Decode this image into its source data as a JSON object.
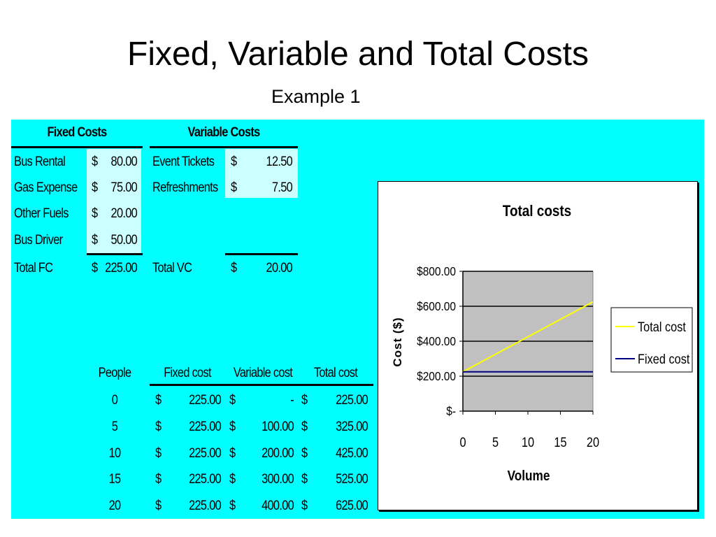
{
  "slide": {
    "title": "Fixed, Variable and Total Costs",
    "subtitle": "Example 1"
  },
  "fixed_costs": {
    "header": "Fixed Costs",
    "items": [
      {
        "label": "Bus Rental",
        "currency": "$",
        "amount": "80.00"
      },
      {
        "label": "Gas Expense",
        "currency": "$",
        "amount": "75.00"
      },
      {
        "label": "Other Fuels",
        "currency": "$",
        "amount": "20.00"
      },
      {
        "label": "Bus Driver",
        "currency": "$",
        "amount": "50.00"
      }
    ],
    "total": {
      "label": "Total FC",
      "currency": "$",
      "amount": "225.00"
    }
  },
  "variable_costs": {
    "header": "Variable Costs",
    "items": [
      {
        "label": "Event Tickets",
        "currency": "$",
        "amount": "12.50"
      },
      {
        "label": "Refreshments",
        "currency": "$",
        "amount": "7.50"
      }
    ],
    "total": {
      "label": "Total VC",
      "currency": "$",
      "amount": "20.00"
    }
  },
  "cost_table": {
    "headers": [
      "People",
      "Fixed cost",
      "Variable cost",
      "Total cost"
    ],
    "rows": [
      {
        "people": "0",
        "fc_cur": "$",
        "fc": "225.00",
        "vc_cur": "$",
        "vc": "-",
        "tc_cur": "$",
        "tc": "225.00"
      },
      {
        "people": "5",
        "fc_cur": "$",
        "fc": "225.00",
        "vc_cur": "$",
        "vc": "100.00",
        "tc_cur": "$",
        "tc": "325.00"
      },
      {
        "people": "10",
        "fc_cur": "$",
        "fc": "225.00",
        "vc_cur": "$",
        "vc": "200.00",
        "tc_cur": "$",
        "tc": "425.00"
      },
      {
        "people": "15",
        "fc_cur": "$",
        "fc": "225.00",
        "vc_cur": "$",
        "vc": "300.00",
        "tc_cur": "$",
        "tc": "525.00"
      },
      {
        "people": "20",
        "fc_cur": "$",
        "fc": "225.00",
        "vc_cur": "$",
        "vc": "400.00",
        "tc_cur": "$",
        "tc": "625.00"
      }
    ]
  },
  "chart_data": {
    "type": "line",
    "title": "Total costs",
    "xlabel": "Volume",
    "ylabel": "Cost ($)",
    "x": [
      0,
      5,
      10,
      15,
      20
    ],
    "x_tick_labels": [
      "0",
      "5",
      "10",
      "15",
      "20"
    ],
    "y_tick_values": [
      0,
      200,
      400,
      600,
      800
    ],
    "y_tick_labels": [
      "$-",
      "$200.00",
      "$400.00",
      "$600.00",
      "$800.00"
    ],
    "ylim": [
      0,
      800
    ],
    "series": [
      {
        "name": "Total cost",
        "color": "#ffff00",
        "values": [
          225,
          325,
          425,
          525,
          625
        ]
      },
      {
        "name": "Fixed cost",
        "color": "#000080",
        "values": [
          225,
          225,
          225,
          225,
          225
        ]
      }
    ],
    "grid": "horizontal",
    "plot_background": "#c0c0c0",
    "legend": "right"
  },
  "colors": {
    "sheet_background": "#00ffff",
    "input_highlight": "#ccffff"
  }
}
